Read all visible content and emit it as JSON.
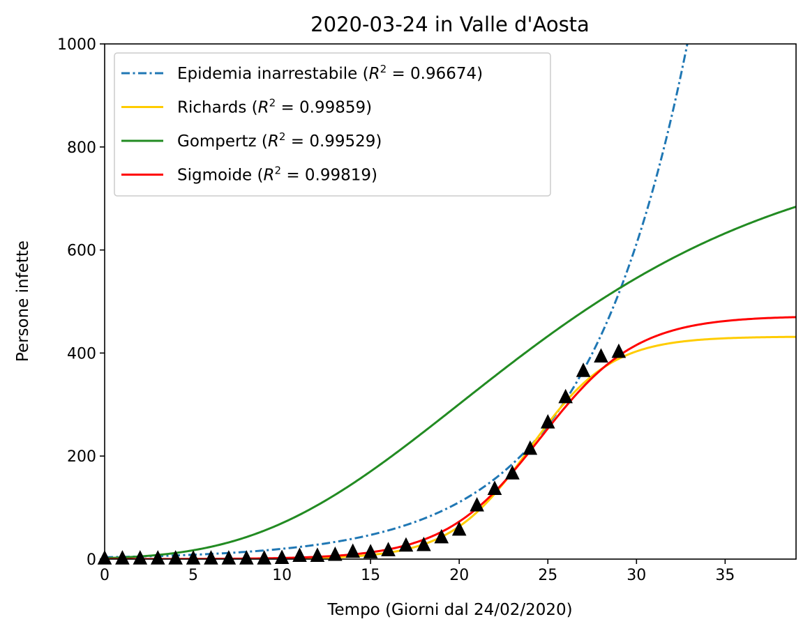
{
  "chart_data": {
    "type": "line",
    "title": "2020-03-24 in Valle d'Aosta",
    "xlabel": "Tempo (Giorni dal 24/02/2020)",
    "ylabel": "Persone infette",
    "xlim": [
      0,
      39
    ],
    "ylim": [
      0,
      1000
    ],
    "xticks": [
      0,
      5,
      10,
      15,
      20,
      25,
      30,
      35
    ],
    "yticks": [
      0,
      200,
      400,
      600,
      800,
      1000
    ],
    "grid": false,
    "legend_position": "top-left",
    "series": [
      {
        "name": "Epidemia inarrestabile",
        "r2": "0.96674",
        "style": "dashdot",
        "color": "#1f77b4",
        "model": {
          "kind": "exponential",
          "a": 3.6,
          "b": 0.1712
        }
      },
      {
        "name": "Richards",
        "r2": "0.99859",
        "style": "solid",
        "color": "#ffcc00",
        "model": {
          "kind": "logistic",
          "K": 432,
          "r": 0.44,
          "t0": 24.0
        }
      },
      {
        "name": "Gompertz",
        "r2": "0.99529",
        "style": "solid",
        "color": "#228b22",
        "model": {
          "kind": "gompertz",
          "K": 820,
          "b": 0.09,
          "t0": 24.1
        }
      },
      {
        "name": "Sigmoide",
        "r2": "0.99819",
        "style": "solid",
        "color": "#ff0000",
        "model": {
          "kind": "logistic",
          "K": 472,
          "r": 0.37,
          "t0": 24.6
        }
      }
    ],
    "observations": {
      "marker": "triangle",
      "color": "#000000",
      "x": [
        0,
        1,
        2,
        3,
        4,
        5,
        6,
        7,
        8,
        9,
        10,
        11,
        12,
        13,
        14,
        15,
        16,
        17,
        18,
        19,
        20,
        21,
        22,
        23,
        24,
        25,
        26,
        27,
        28,
        29
      ],
      "y": [
        0,
        0,
        0,
        0,
        0,
        0,
        0,
        0,
        0,
        0,
        1,
        5,
        5,
        7,
        13,
        12,
        16,
        25,
        26,
        41,
        56,
        103,
        135,
        165,
        213,
        264,
        313,
        364,
        392,
        401
      ]
    }
  }
}
